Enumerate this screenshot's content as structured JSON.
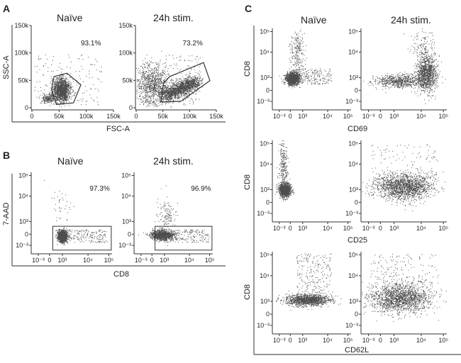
{
  "figure": {
    "panels": [
      {
        "label": "A",
        "titles": [
          "Naïve",
          "24h stim."
        ],
        "xlabel": "FSC-A",
        "ylabel": "SSC-A"
      },
      {
        "label": "B",
        "titles": [
          "Naïve",
          "24h stim."
        ],
        "xlabel": "CD8",
        "ylabel": "7-AAD"
      },
      {
        "label": "C",
        "titles": [
          "Naïve",
          "24h stim."
        ],
        "xlabels": [
          "CD69",
          "CD25",
          "CD62L"
        ],
        "ylabel": "CD8"
      }
    ]
  },
  "chart_data": [
    {
      "id": "A-naive",
      "type": "scatter",
      "title": "Naïve",
      "xlabel": "FSC-A",
      "ylabel": "SSC-A",
      "xticks": [
        "0",
        "50k",
        "100k",
        "150k"
      ],
      "yticks": [
        "0",
        "50k",
        "100k",
        "150k"
      ],
      "xlim": [
        0,
        150000
      ],
      "ylim": [
        0,
        150000
      ],
      "gate": "polygon",
      "gate_percent": "93.1%"
    },
    {
      "id": "A-stim",
      "type": "scatter",
      "title": "24h stim.",
      "xlabel": "FSC-A",
      "ylabel": "SSC-A",
      "xticks": [
        "0",
        "50k",
        "100k",
        "150k"
      ],
      "yticks": [
        "0",
        "50k",
        "100k",
        "150k"
      ],
      "xlim": [
        0,
        150000
      ],
      "ylim": [
        0,
        150000
      ],
      "gate": "polygon",
      "gate_percent": "73.2%"
    },
    {
      "id": "B-naive",
      "type": "scatter",
      "title": "Naïve",
      "xlabel": "CD8",
      "ylabel": "7-AAD",
      "xticks": [
        "10⁻³",
        "0",
        "10³",
        "10⁴",
        "10⁵"
      ],
      "yticks": [
        "10⁻³",
        "0",
        "10³",
        "10⁴",
        "10⁵"
      ],
      "scale": "biexponential",
      "gate": "rectangle",
      "gate_percent": "97.3%"
    },
    {
      "id": "B-stim",
      "type": "scatter",
      "title": "24h stim.",
      "xlabel": "CD8",
      "ylabel": "7-AAD",
      "xticks": [
        "10⁻³",
        "0",
        "10³",
        "10⁴",
        "10⁵"
      ],
      "yticks": [
        "10⁻³",
        "0",
        "10³",
        "10⁴",
        "10⁵"
      ],
      "scale": "biexponential",
      "gate": "rectangle",
      "gate_percent": "96.9%"
    },
    {
      "id": "C-CD69-naive",
      "type": "scatter",
      "xlabel": "CD69",
      "ylabel": "CD8",
      "xticks": [
        "10⁻³",
        "0",
        "10³",
        "10⁴",
        "10⁵"
      ],
      "yticks": [
        "10⁻³",
        "0",
        "10³",
        "10⁴",
        "10⁵"
      ],
      "scale": "biexponential"
    },
    {
      "id": "C-CD69-stim",
      "type": "scatter",
      "xlabel": "CD69",
      "ylabel": "CD8",
      "xticks": [
        "10⁻³",
        "0",
        "10³",
        "10⁴",
        "10⁵"
      ],
      "yticks": [
        "10⁻³",
        "0",
        "10³",
        "10⁴",
        "10⁵"
      ],
      "scale": "biexponential"
    },
    {
      "id": "C-CD25-naive",
      "type": "scatter",
      "xlabel": "CD25",
      "ylabel": "CD8",
      "xticks": [
        "10⁻³",
        "0",
        "10³",
        "10⁴",
        "10⁵"
      ],
      "yticks": [
        "10⁻³",
        "0",
        "10³",
        "10⁴",
        "10⁵"
      ],
      "scale": "biexponential"
    },
    {
      "id": "C-CD25-stim",
      "type": "scatter",
      "xlabel": "CD25",
      "ylabel": "CD8",
      "xticks": [
        "10⁻³",
        "0",
        "10³",
        "10⁴",
        "10⁵"
      ],
      "yticks": [
        "10⁻³",
        "0",
        "10³",
        "10⁴",
        "10⁵"
      ],
      "scale": "biexponential"
    },
    {
      "id": "C-CD62L-naive",
      "type": "scatter",
      "xlabel": "CD62L",
      "ylabel": "CD8",
      "xticks": [
        "10⁻³",
        "0",
        "10³",
        "10⁴",
        "10⁵"
      ],
      "yticks": [
        "10⁻³",
        "0",
        "10³",
        "10⁴",
        "10⁵"
      ],
      "scale": "biexponential"
    },
    {
      "id": "C-CD62L-stim",
      "type": "scatter",
      "xlabel": "CD62L",
      "ylabel": "CD8",
      "xticks": [
        "10⁻³",
        "0",
        "10³",
        "10⁴",
        "10⁵"
      ],
      "yticks": [
        "10⁻³",
        "0",
        "10³",
        "10⁴",
        "10⁵"
      ],
      "scale": "biexponential"
    }
  ]
}
